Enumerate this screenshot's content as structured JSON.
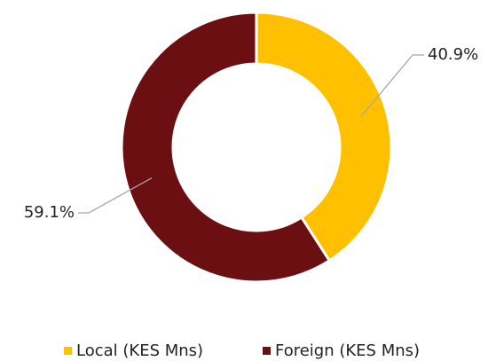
{
  "chart_data": {
    "type": "donut",
    "categories": [
      "Local (KES Mns)",
      "Foreign (KES Mns)"
    ],
    "values": [
      40.9,
      59.1
    ],
    "value_labels": [
      "40.9%",
      "59.1%"
    ],
    "colors": [
      "#FFC000",
      "#6B0F12"
    ],
    "legend": "bottom"
  }
}
